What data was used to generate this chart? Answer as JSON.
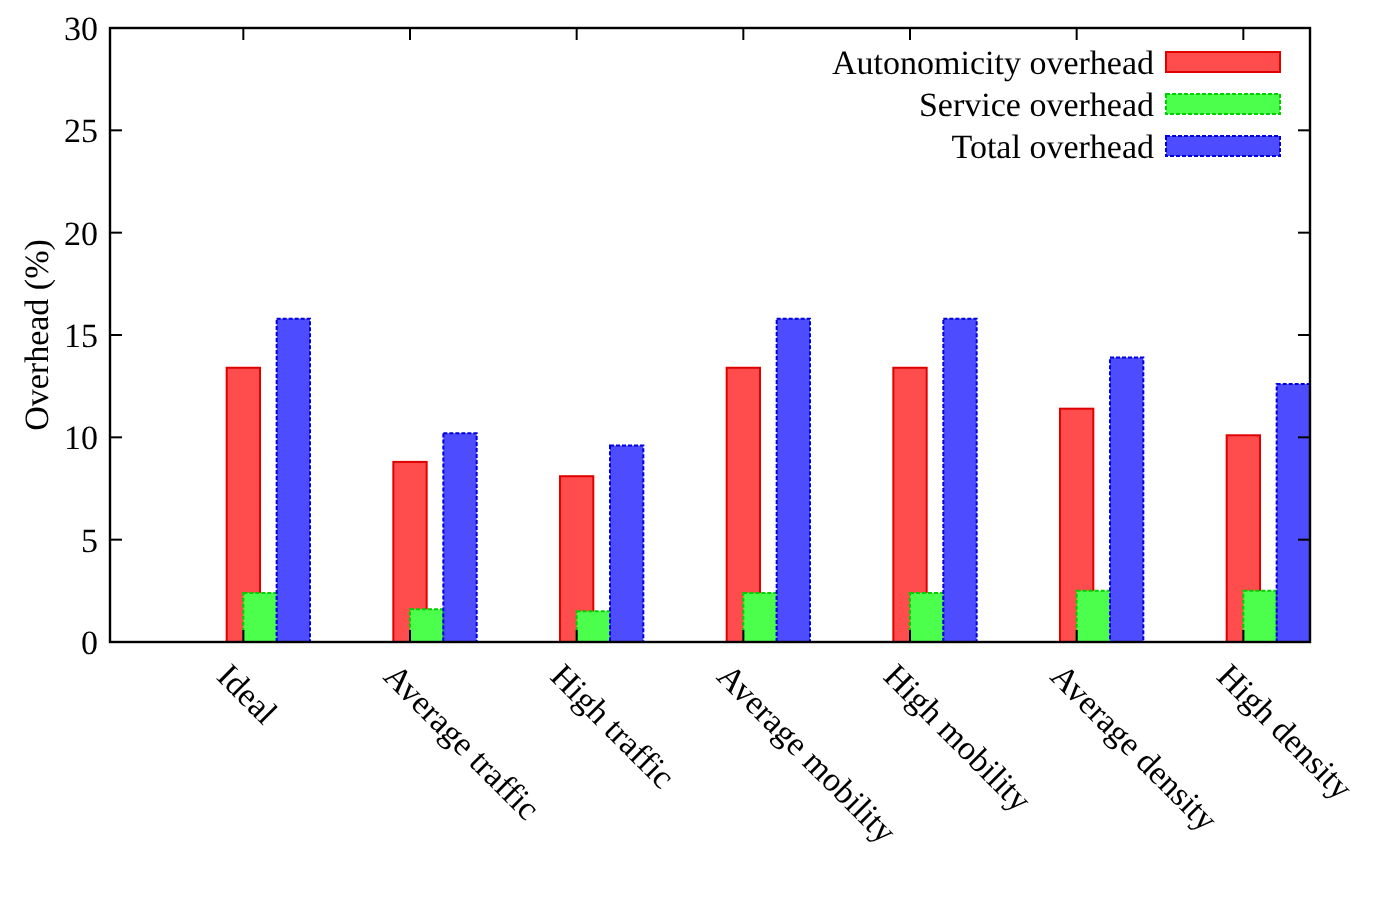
{
  "chart_data": {
    "type": "bar",
    "ylabel": "Overhead (%)",
    "categories": [
      "Ideal",
      "Average traffic",
      "High traffic",
      "Average mobility",
      "High mobility",
      "Average density",
      "High density"
    ],
    "series": [
      {
        "name": "Autonomicity overhead",
        "color": "#ff4d4d",
        "values": [
          13.4,
          8.8,
          8.1,
          13.4,
          13.4,
          11.4,
          10.1
        ]
      },
      {
        "name": "Service overhead",
        "color": "#4dff4d",
        "values": [
          2.4,
          1.6,
          1.5,
          2.4,
          2.4,
          2.5,
          2.5
        ]
      },
      {
        "name": "Total overhead",
        "color": "#4d4dff",
        "values": [
          15.8,
          10.2,
          9.6,
          15.8,
          15.8,
          13.9,
          12.6
        ]
      }
    ],
    "ylim": [
      0,
      30
    ],
    "yticks": [
      0,
      5,
      10,
      15,
      20,
      25,
      30
    ],
    "grid": false,
    "legend": "top right"
  }
}
